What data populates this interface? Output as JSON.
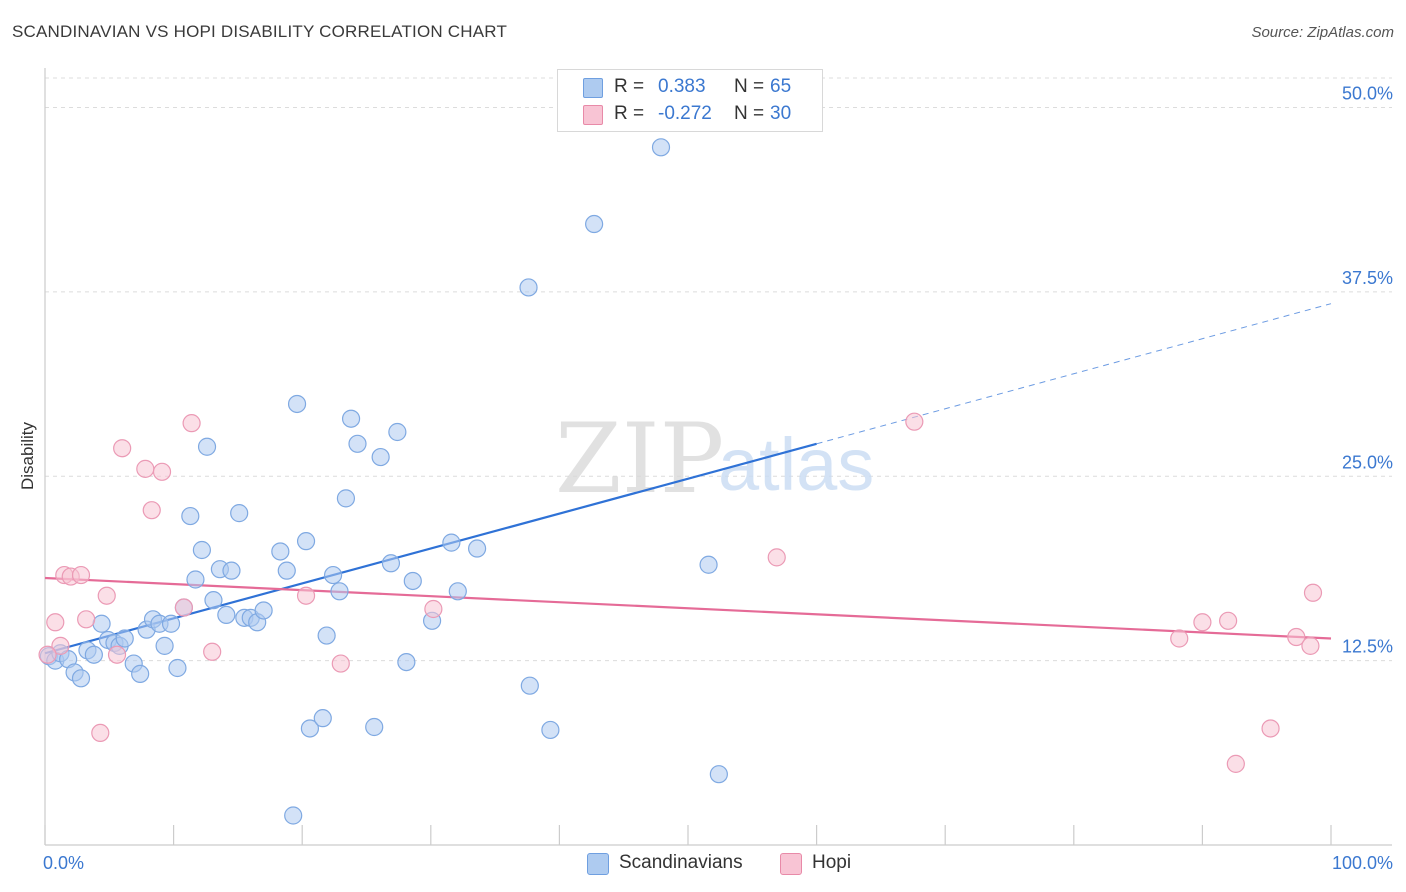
{
  "header": {
    "title": "SCANDINAVIAN VS HOPI DISABILITY CORRELATION CHART",
    "source": "Source: ZipAtlas.com"
  },
  "legend_top": {
    "rows": [
      {
        "r_label": "R =",
        "r_value": "0.383",
        "n_label": "N =",
        "n_value": "65",
        "color": "#aecbf0",
        "border": "#6f9fe0"
      },
      {
        "r_label": "R =",
        "r_value": "-0.272",
        "n_label": "N =",
        "n_value": "30",
        "color": "#f8c4d4",
        "border": "#e88aa8"
      }
    ]
  },
  "legend_bottom": {
    "items": [
      {
        "label": "Scandinavians",
        "color": "#aecbf0",
        "border": "#6f9fe0"
      },
      {
        "label": "Hopi",
        "color": "#f8c4d4",
        "border": "#e88aa8"
      }
    ]
  },
  "watermark": {
    "zip": "ZIP",
    "atlas": "atlas"
  },
  "chart_data": {
    "type": "scatter",
    "xlabel": "",
    "ylabel": "Disability",
    "xlim": [
      0,
      100
    ],
    "ylim": [
      0,
      52
    ],
    "x_tick_labels": [
      "0.0%",
      "100.0%"
    ],
    "y_ticks": [
      12.5,
      25.0,
      37.5,
      50.0
    ],
    "y_tick_labels": [
      "12.5%",
      "25.0%",
      "37.5%",
      "50.0%"
    ],
    "grid": true,
    "colors": {
      "scandinavians": "#2f72d6",
      "hopi": "#e56b97",
      "axis_label": "#3b78d0"
    },
    "series": [
      {
        "name": "Scandinavians",
        "points": [
          [
            0.3,
            12.8
          ],
          [
            0.8,
            12.5
          ],
          [
            1.2,
            13.0
          ],
          [
            1.8,
            12.6
          ],
          [
            2.3,
            11.7
          ],
          [
            2.8,
            11.3
          ],
          [
            3.3,
            13.2
          ],
          [
            3.8,
            12.9
          ],
          [
            4.4,
            15.0
          ],
          [
            4.9,
            13.9
          ],
          [
            5.4,
            13.7
          ],
          [
            5.8,
            13.5
          ],
          [
            6.2,
            14.0
          ],
          [
            6.9,
            12.3
          ],
          [
            7.4,
            11.6
          ],
          [
            7.9,
            14.6
          ],
          [
            8.4,
            15.3
          ],
          [
            8.9,
            15.0
          ],
          [
            9.3,
            13.5
          ],
          [
            9.8,
            15.0
          ],
          [
            10.3,
            12.0
          ],
          [
            10.8,
            16.1
          ],
          [
            11.3,
            22.3
          ],
          [
            11.7,
            18.0
          ],
          [
            12.2,
            20.0
          ],
          [
            12.6,
            27.0
          ],
          [
            13.1,
            16.6
          ],
          [
            13.6,
            18.7
          ],
          [
            14.1,
            15.6
          ],
          [
            14.5,
            18.6
          ],
          [
            15.1,
            22.5
          ],
          [
            15.5,
            15.4
          ],
          [
            16.0,
            15.4
          ],
          [
            16.5,
            15.1
          ],
          [
            17.0,
            15.9
          ],
          [
            18.3,
            19.9
          ],
          [
            18.8,
            18.6
          ],
          [
            19.6,
            29.9
          ],
          [
            19.3,
            2.0
          ],
          [
            20.3,
            20.6
          ],
          [
            20.6,
            7.9
          ],
          [
            21.6,
            8.6
          ],
          [
            21.9,
            14.2
          ],
          [
            22.4,
            18.3
          ],
          [
            22.9,
            17.2
          ],
          [
            23.4,
            23.5
          ],
          [
            23.8,
            28.9
          ],
          [
            24.3,
            27.2
          ],
          [
            25.6,
            8.0
          ],
          [
            26.1,
            26.3
          ],
          [
            26.9,
            19.1
          ],
          [
            27.4,
            28.0
          ],
          [
            28.1,
            12.4
          ],
          [
            28.6,
            17.9
          ],
          [
            30.1,
            15.2
          ],
          [
            31.6,
            20.5
          ],
          [
            32.1,
            17.2
          ],
          [
            33.6,
            20.1
          ],
          [
            37.6,
            37.8
          ],
          [
            37.7,
            10.8
          ],
          [
            39.3,
            7.8
          ],
          [
            42.7,
            42.1
          ],
          [
            47.9,
            47.3
          ],
          [
            51.6,
            19.0
          ],
          [
            52.4,
            4.8
          ]
        ]
      },
      {
        "name": "Hopi",
        "points": [
          [
            0.8,
            15.1
          ],
          [
            1.2,
            13.5
          ],
          [
            1.5,
            18.3
          ],
          [
            2.0,
            18.2
          ],
          [
            2.8,
            18.3
          ],
          [
            3.2,
            15.3
          ],
          [
            4.3,
            7.6
          ],
          [
            4.8,
            16.9
          ],
          [
            5.6,
            12.9
          ],
          [
            6.0,
            26.9
          ],
          [
            7.8,
            25.5
          ],
          [
            8.3,
            22.7
          ],
          [
            9.1,
            25.3
          ],
          [
            10.8,
            16.1
          ],
          [
            11.4,
            28.6
          ],
          [
            13.0,
            13.1
          ],
          [
            20.3,
            16.9
          ],
          [
            23.0,
            12.3
          ],
          [
            30.2,
            16.0
          ],
          [
            56.9,
            19.5
          ],
          [
            67.6,
            28.7
          ],
          [
            88.2,
            14.0
          ],
          [
            90.0,
            15.1
          ],
          [
            92.0,
            15.2
          ],
          [
            92.6,
            5.5
          ],
          [
            95.3,
            7.9
          ],
          [
            97.3,
            14.1
          ],
          [
            98.4,
            13.5
          ],
          [
            98.6,
            17.1
          ],
          [
            0.2,
            12.9
          ]
        ]
      }
    ],
    "trendlines": [
      {
        "series": "Scandinavians",
        "x0": 0,
        "y0": 13.0,
        "x1": 60,
        "y1": 27.2,
        "dashed_to": 100,
        "dashed_y1": 36.7
      },
      {
        "series": "Hopi",
        "x0": 0,
        "y0": 18.1,
        "x1": 100,
        "y1": 14.0
      }
    ]
  }
}
